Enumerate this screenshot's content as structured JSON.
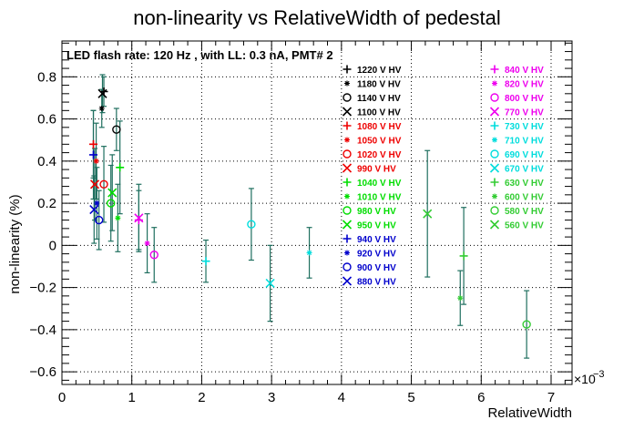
{
  "chart_data": {
    "type": "scatter",
    "title": "non-linearity vs RelativeWidth of pedestal",
    "subtitle": "LED flash rate: 120 Hz , with LL: 0.3 nA, PMT# 2",
    "xlabel": "RelativeWidth",
    "ylabel": "non-linearity (%)",
    "x_exponent_label": "×10",
    "x_exponent_power": "−3",
    "xlim": [
      0,
      7.3
    ],
    "ylim": [
      -0.66,
      0.97
    ],
    "x_ticks": [
      0,
      1,
      2,
      3,
      4,
      5,
      6,
      7
    ],
    "x_tick_labels": [
      "0",
      "1",
      "2",
      "3",
      "4",
      "5",
      "6",
      "7"
    ],
    "y_ticks": [
      -0.6,
      -0.4,
      -0.2,
      0,
      0.2,
      0.4,
      0.6,
      0.8
    ],
    "y_tick_labels": [
      "−0.6",
      "−0.4",
      "−0.2",
      "0",
      "0.2",
      "0.4",
      "0.6",
      "0.8"
    ],
    "grid": true,
    "error_bar_color": "#1f6f5f",
    "series": [
      {
        "name": "1220 V HV",
        "color": "#000000",
        "marker": "plus",
        "points": [
          {
            "x": 0.6,
            "y": 0.73,
            "err": 0.07
          }
        ]
      },
      {
        "name": "1180 V HV",
        "color": "#000000",
        "marker": "star",
        "points": [
          {
            "x": 0.57,
            "y": 0.65,
            "err": 0.09
          }
        ]
      },
      {
        "name": "1140 V HV",
        "color": "#000000",
        "marker": "circle",
        "points": [
          {
            "x": 0.78,
            "y": 0.55,
            "err": 0.1
          }
        ]
      },
      {
        "name": "1100 V HV",
        "color": "#000000",
        "marker": "x",
        "points": [
          {
            "x": 0.58,
            "y": 0.72,
            "err": 0.09
          }
        ]
      },
      {
        "name": "1080 V HV",
        "color": "#ee0000",
        "marker": "plus",
        "points": [
          {
            "x": 0.45,
            "y": 0.48,
            "err": 0.16
          }
        ]
      },
      {
        "name": "1050 V HV",
        "color": "#ee0000",
        "marker": "star",
        "points": [
          {
            "x": 0.49,
            "y": 0.4,
            "err": 0.18
          }
        ]
      },
      {
        "name": "1020 V HV",
        "color": "#ee0000",
        "marker": "circle",
        "points": [
          {
            "x": 0.6,
            "y": 0.29,
            "err": 0.18
          }
        ]
      },
      {
        "name": "990 V HV",
        "color": "#ee0000",
        "marker": "x",
        "points": [
          {
            "x": 0.47,
            "y": 0.29,
            "err": 0.17
          }
        ]
      },
      {
        "name": "1040 V HV",
        "color": "#00dd00",
        "marker": "plus",
        "points": [
          {
            "x": 0.83,
            "y": 0.37,
            "err": 0.22
          }
        ]
      },
      {
        "name": "1010 V HV",
        "color": "#00dd00",
        "marker": "star",
        "points": [
          {
            "x": 0.8,
            "y": 0.13,
            "err": 0.16
          }
        ]
      },
      {
        "name": "980 V HV",
        "color": "#00dd00",
        "marker": "circle",
        "points": [
          {
            "x": 0.7,
            "y": 0.2,
            "err": 0.18
          }
        ]
      },
      {
        "name": "950 V HV",
        "color": "#00dd00",
        "marker": "x",
        "points": [
          {
            "x": 0.72,
            "y": 0.25,
            "err": 0.18
          }
        ]
      },
      {
        "name": "940 V HV",
        "color": "#0000cc",
        "marker": "plus",
        "points": [
          {
            "x": 0.45,
            "y": 0.43,
            "err": 0.21
          }
        ]
      },
      {
        "name": "920 V HV",
        "color": "#0000cc",
        "marker": "star",
        "points": [
          {
            "x": 0.5,
            "y": 0.2,
            "err": 0.17
          }
        ]
      },
      {
        "name": "900 V HV",
        "color": "#0000cc",
        "marker": "circle",
        "points": [
          {
            "x": 0.53,
            "y": 0.12,
            "err": 0.14
          }
        ]
      },
      {
        "name": "880 V HV",
        "color": "#0000cc",
        "marker": "x",
        "points": [
          {
            "x": 0.46,
            "y": 0.17,
            "err": 0.16
          }
        ]
      },
      {
        "name": "840 V HV",
        "color": "#ee00ee",
        "marker": "plus",
        "points": [
          {
            "x": 1.1,
            "y": 0.12,
            "err": 0.14
          }
        ]
      },
      {
        "name": "820 V HV",
        "color": "#ee00ee",
        "marker": "star",
        "points": [
          {
            "x": 1.22,
            "y": 0.01,
            "err": 0.14
          }
        ]
      },
      {
        "name": "800 V HV",
        "color": "#ee00ee",
        "marker": "circle",
        "points": [
          {
            "x": 1.32,
            "y": -0.045,
            "err": 0.13
          }
        ]
      },
      {
        "name": "770 V HV",
        "color": "#ee00ee",
        "marker": "x",
        "points": [
          {
            "x": 1.1,
            "y": 0.13,
            "err": 0.16
          }
        ]
      },
      {
        "name": "730 V HV",
        "color": "#00dddd",
        "marker": "plus",
        "points": [
          {
            "x": 2.06,
            "y": -0.075,
            "err": 0.1
          }
        ]
      },
      {
        "name": "710 V HV",
        "color": "#00dddd",
        "marker": "star",
        "points": [
          {
            "x": 3.54,
            "y": -0.035,
            "err": 0.12
          }
        ]
      },
      {
        "name": "690 V HV",
        "color": "#00dddd",
        "marker": "circle",
        "points": [
          {
            "x": 2.71,
            "y": 0.1,
            "err": 0.17
          }
        ]
      },
      {
        "name": "670 V HV",
        "color": "#00dddd",
        "marker": "x",
        "points": [
          {
            "x": 2.98,
            "y": -0.18,
            "err": 0.18
          }
        ]
      },
      {
        "name": "630 V HV",
        "color": "#33cc33",
        "marker": "plus",
        "points": [
          {
            "x": 5.75,
            "y": -0.05,
            "err": 0.23
          }
        ]
      },
      {
        "name": "600 V HV",
        "color": "#33cc33",
        "marker": "star",
        "points": [
          {
            "x": 5.7,
            "y": -0.25,
            "err": 0.13
          }
        ]
      },
      {
        "name": "580 V HV",
        "color": "#33cc33",
        "marker": "circle",
        "points": [
          {
            "x": 6.65,
            "y": -0.375,
            "err": 0.16
          }
        ]
      },
      {
        "name": "560 V HV",
        "color": "#33cc33",
        "marker": "x",
        "points": [
          {
            "x": 5.23,
            "y": 0.15,
            "err": 0.3
          }
        ]
      }
    ]
  }
}
